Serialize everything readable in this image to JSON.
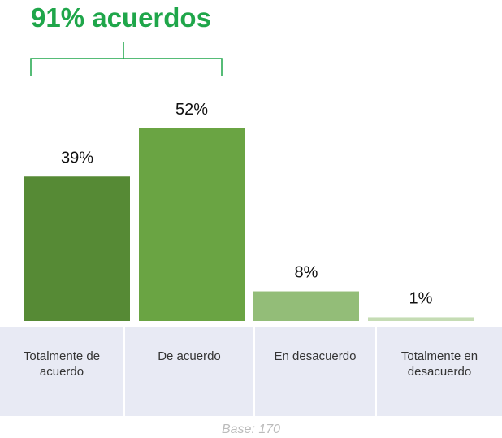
{
  "chart_data": {
    "type": "bar",
    "annotation": "91% acuerdos",
    "categories": [
      "Totalmente de acuerdo",
      "De acuerdo",
      "En desacuerdo",
      "Totalmente en desacuerdo"
    ],
    "values": [
      39,
      52,
      8,
      1
    ],
    "value_labels": [
      "39%",
      "52%",
      "8%",
      "1%"
    ],
    "colors": [
      "#568a35",
      "#6aa443",
      "#93bd78",
      "#c5dcb4"
    ],
    "note": "Base: 170"
  }
}
